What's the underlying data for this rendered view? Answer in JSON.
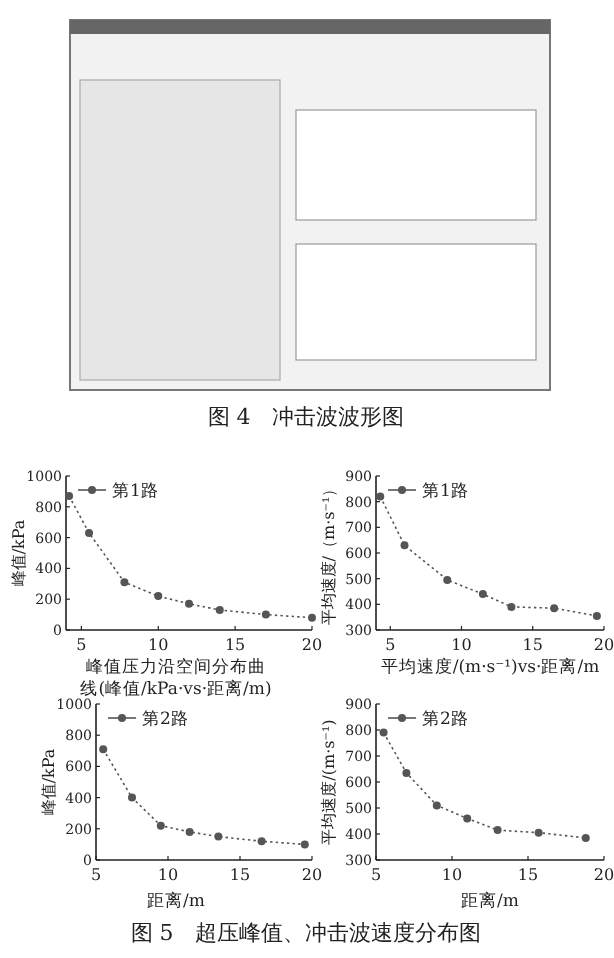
{
  "chart_data": [
    {
      "type": "other",
      "annotations": [
        "图 4　冲击波波形图"
      ]
    },
    {
      "type": "line",
      "xlabel": "峰值压力沿空间分布曲线(峰值/kPa·vs·距离/m)",
      "ylabel": "峰值/kPa",
      "xlim": [
        4,
        20
      ],
      "ylim": [
        0,
        1000
      ],
      "xticks": [
        5,
        10,
        15,
        20
      ],
      "yticks": [
        0,
        200,
        400,
        600,
        800,
        1000
      ],
      "legend": "top left",
      "marker": "circle",
      "line_style": "dotted",
      "series": [
        {
          "name": "第1路",
          "color": "#555555",
          "x": [
            4.2,
            5.5,
            7.8,
            10,
            12,
            14,
            17,
            20
          ],
          "values": [
            870,
            630,
            310,
            220,
            170,
            130,
            100,
            80
          ]
        }
      ]
    },
    {
      "type": "line",
      "xlabel": "平均速度/(m·s⁻¹)vs·距离/m",
      "ylabel": "平均速度/（m·s⁻¹）",
      "xlim": [
        4,
        20
      ],
      "ylim": [
        300,
        900
      ],
      "xticks": [
        5,
        10,
        15,
        20
      ],
      "yticks": [
        300,
        400,
        500,
        600,
        700,
        800,
        900
      ],
      "legend": "top left",
      "marker": "circle",
      "line_style": "dotted",
      "series": [
        {
          "name": "第1路",
          "color": "#555555",
          "x": [
            4.3,
            6,
            9,
            11.5,
            13.5,
            16.5,
            19.5
          ],
          "values": [
            820,
            630,
            495,
            440,
            390,
            385,
            355
          ]
        }
      ]
    },
    {
      "type": "line",
      "xlabel": "距离/m",
      "ylabel": "峰值/kPa",
      "xlim": [
        5,
        20
      ],
      "ylim": [
        0,
        1000
      ],
      "xticks": [
        5,
        10,
        15,
        20
      ],
      "yticks": [
        0,
        200,
        400,
        600,
        800,
        1000
      ],
      "legend": "top left",
      "marker": "circle",
      "line_style": "dotted",
      "series": [
        {
          "name": "第2路",
          "color": "#555555",
          "x": [
            5.5,
            7.5,
            9.5,
            11.5,
            13.5,
            16.5,
            19.5
          ],
          "values": [
            710,
            400,
            220,
            180,
            150,
            120,
            100
          ]
        }
      ]
    },
    {
      "type": "line",
      "xlabel": "距离/m",
      "ylabel": "平均速度/(m·s⁻¹)",
      "xlim": [
        5,
        20
      ],
      "ylim": [
        300,
        900
      ],
      "xticks": [
        5,
        10,
        15,
        20
      ],
      "yticks": [
        300,
        400,
        500,
        600,
        700,
        800,
        900
      ],
      "legend": "top left",
      "marker": "circle",
      "line_style": "dotted",
      "series": [
        {
          "name": "第2路",
          "color": "#555555",
          "x": [
            5.5,
            7,
            9,
            11,
            13,
            15.7,
            18.8
          ],
          "values": [
            790,
            635,
            510,
            460,
            415,
            405,
            385
          ]
        }
      ]
    },
    {
      "type": "other",
      "annotations": [
        "图 5　超压峰值、冲击波速度分布图"
      ]
    }
  ]
}
